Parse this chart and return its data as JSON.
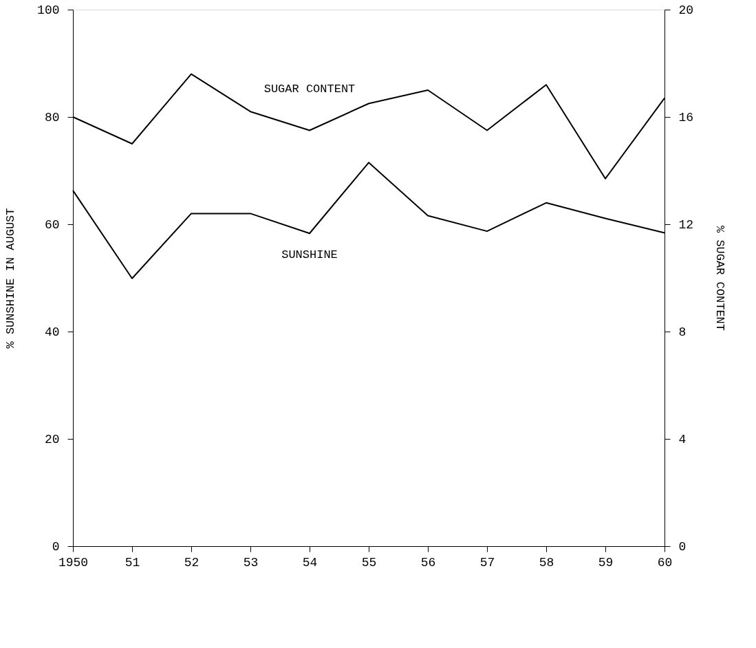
{
  "chart_data": {
    "type": "line",
    "xlabel": null,
    "ylabel": "% SUNSHINE IN AUGUST",
    "y2label": "% SUGAR CONTENT",
    "x": [
      1950,
      1951,
      1952,
      1953,
      1954,
      1955,
      1956,
      1957,
      1958,
      1959,
      1960
    ],
    "xlim": [
      1950,
      1960
    ],
    "xticks": [
      {
        "value": 1950,
        "label": "1950"
      },
      {
        "value": 1951,
        "label": "51"
      },
      {
        "value": 1952,
        "label": "52"
      },
      {
        "value": 1953,
        "label": "53"
      },
      {
        "value": 1954,
        "label": "54"
      },
      {
        "value": 1955,
        "label": "55"
      },
      {
        "value": 1956,
        "label": "56"
      },
      {
        "value": 1957,
        "label": "57"
      },
      {
        "value": 1958,
        "label": "58"
      },
      {
        "value": 1959,
        "label": "59"
      },
      {
        "value": 1960,
        "label": "60"
      }
    ],
    "ylim": [
      0,
      100
    ],
    "yticks": [
      0,
      20,
      40,
      60,
      80,
      100
    ],
    "y2lim": [
      0,
      20
    ],
    "y2ticks": [
      0,
      4,
      8,
      12,
      16,
      20
    ],
    "series": [
      {
        "name": "SUGAR CONTENT",
        "color": "#000000",
        "axis": "y2",
        "values": [
          16.0,
          15.0,
          17.6,
          16.2,
          15.5,
          16.5,
          17.0,
          15.5,
          17.2,
          13.7,
          16.7
        ]
      },
      {
        "name": "SUNSHINE",
        "color": "#000000",
        "axis": "y",
        "values": [
          66.3,
          49.9,
          62.0,
          62.0,
          58.3,
          71.5,
          61.6,
          58.7,
          64.0,
          61.1,
          58.4
        ]
      }
    ],
    "grid": false,
    "legend": false,
    "marker": "none",
    "line_style": "solid"
  }
}
